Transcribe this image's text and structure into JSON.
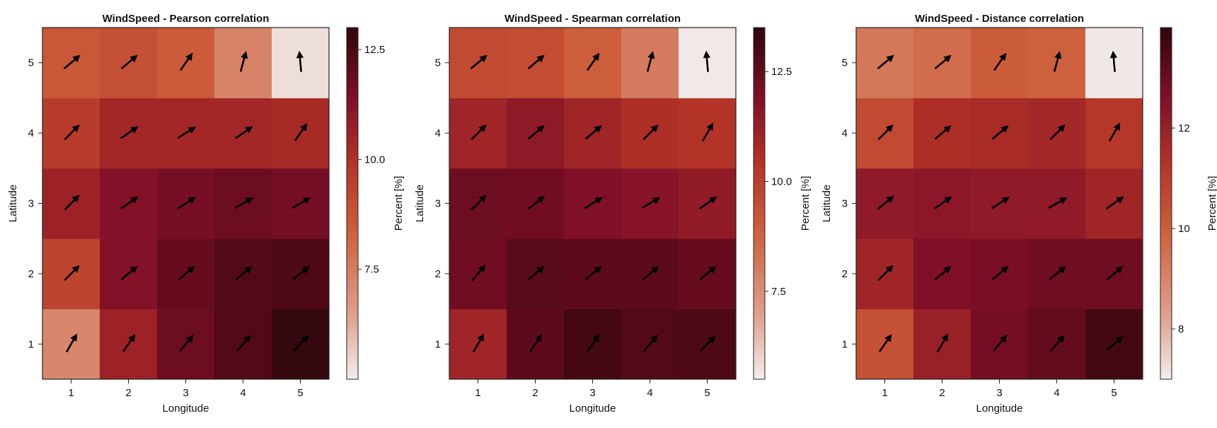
{
  "chart_data": [
    {
      "type": "heatmap",
      "title": "WindSpeed - Pearson correlation",
      "xlabel": "Longitude",
      "ylabel": "Latitude",
      "x": [
        1,
        2,
        3,
        4,
        5
      ],
      "y": [
        1,
        2,
        3,
        4,
        5
      ],
      "colorbar": {
        "label": "Percent [%]",
        "range": [
          5.0,
          13.0
        ],
        "ticks": [
          7.5,
          10.0,
          12.5
        ],
        "tick_labels": [
          "7.5",
          "10.0",
          "12.5"
        ]
      },
      "values": [
        [
          7.2,
          10.6,
          11.8,
          12.3,
          12.9
        ],
        [
          9.3,
          11.3,
          11.9,
          12.3,
          12.4
        ],
        [
          10.6,
          11.3,
          11.6,
          11.8,
          11.6
        ],
        [
          9.6,
          10.4,
          10.4,
          10.4,
          10.3
        ],
        [
          8.6,
          8.9,
          8.5,
          7.3,
          5.3
        ]
      ],
      "arrow_angles_deg": [
        [
          60,
          55,
          50,
          48,
          45
        ],
        [
          45,
          40,
          40,
          40,
          38
        ],
        [
          45,
          35,
          33,
          30,
          30
        ],
        [
          45,
          35,
          32,
          35,
          55
        ],
        [
          40,
          40,
          55,
          75,
          95
        ]
      ]
    },
    {
      "type": "heatmap",
      "title": "WindSpeed - Spearman correlation",
      "xlabel": "Longitude",
      "ylabel": "Latitude",
      "x": [
        1,
        2,
        3,
        4,
        5
      ],
      "y": [
        1,
        2,
        3,
        4,
        5
      ],
      "colorbar": {
        "label": "Percent [%]",
        "range": [
          5.5,
          13.5
        ],
        "ticks": [
          7.5,
          10.0,
          12.5
        ],
        "tick_labels": [
          "7.5",
          "10.0",
          "12.5"
        ]
      },
      "values": [
        [
          11.0,
          12.6,
          13.1,
          12.8,
          12.9
        ],
        [
          12.2,
          12.7,
          12.6,
          12.6,
          12.4
        ],
        [
          12.3,
          12.2,
          11.9,
          11.7,
          11.4
        ],
        [
          11.0,
          11.5,
          11.0,
          10.6,
          10.4
        ],
        [
          9.6,
          9.5,
          8.9,
          8.0,
          5.6
        ]
      ],
      "arrow_angles_deg": [
        [
          60,
          55,
          55,
          50,
          45
        ],
        [
          50,
          40,
          40,
          40,
          40
        ],
        [
          45,
          38,
          32,
          30,
          35
        ],
        [
          45,
          40,
          40,
          45,
          60
        ],
        [
          40,
          40,
          55,
          75,
          95
        ]
      ]
    },
    {
      "type": "heatmap",
      "title": "WindSpeed - Distance correlation",
      "xlabel": "Longitude",
      "ylabel": "Latitude",
      "x": [
        1,
        2,
        3,
        4,
        5
      ],
      "y": [
        1,
        2,
        3,
        4,
        5
      ],
      "colorbar": {
        "label": "Percent [%]",
        "range": [
          7.0,
          14.0
        ],
        "ticks": [
          8,
          10,
          12
        ],
        "tick_labels": [
          "8",
          "10",
          "12"
        ]
      },
      "values": [
        [
          10.4,
          12.0,
          12.8,
          13.1,
          13.7
        ],
        [
          11.8,
          12.6,
          12.7,
          12.9,
          12.9
        ],
        [
          12.2,
          12.3,
          12.2,
          12.2,
          11.8
        ],
        [
          10.6,
          11.5,
          11.6,
          11.7,
          11.2
        ],
        [
          9.3,
          9.6,
          10.0,
          9.9,
          7.1
        ]
      ],
      "arrow_angles_deg": [
        [
          55,
          60,
          50,
          48,
          40
        ],
        [
          45,
          40,
          40,
          38,
          40
        ],
        [
          40,
          35,
          33,
          30,
          35
        ],
        [
          45,
          40,
          40,
          45,
          60
        ],
        [
          40,
          40,
          55,
          75,
          95
        ]
      ]
    }
  ]
}
